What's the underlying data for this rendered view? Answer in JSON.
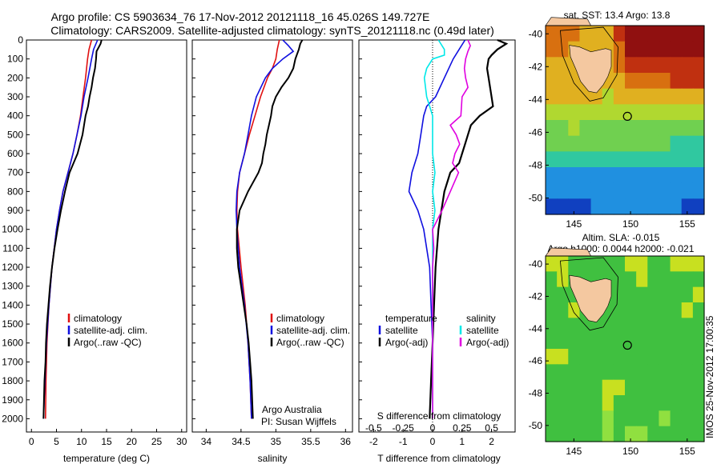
{
  "header": {
    "title_line1": "Argo profile: CS 5903634_76 17-Nov-2012 20121118_16 45.026S 149.727E",
    "title_line2": "Climatology: CARS2009. Satellite-adjusted climatology: synTS_20121118.nc (0.49d later)"
  },
  "colors": {
    "climatology": "#e01010",
    "satellite": "#1010e0",
    "argo": "#000000",
    "salinity_satellite": "#00e8e8",
    "salinity_argo": "#e000e0",
    "land": "#f4c8a0"
  },
  "chart_data": [
    {
      "type": "line",
      "title": "",
      "xlabel": "temperature (deg C)",
      "ylabel": "",
      "xlim": [
        -1,
        31
      ],
      "ylim": [
        2070,
        0
      ],
      "xticks": [
        "0",
        "5",
        "10",
        "15",
        "20",
        "25",
        "30"
      ],
      "xtick_values": [
        0,
        5,
        10,
        15,
        20,
        25,
        30
      ],
      "yticks": [
        "0",
        "100",
        "200",
        "300",
        "400",
        "500",
        "600",
        "700",
        "800",
        "900",
        "1000",
        "1100",
        "1200",
        "1300",
        "1400",
        "1500",
        "1600",
        "1700",
        "1800",
        "1900",
        "2000"
      ],
      "legend": [
        "climatology",
        "satellite-adj. clim.",
        "Argo(..raw -QC)"
      ],
      "legend_position": "lower-left",
      "series": [
        {
          "name": "climatology",
          "color": "red",
          "depth": [
            0,
            50,
            100,
            200,
            300,
            400,
            500,
            600,
            700,
            800,
            900,
            1000,
            1200,
            1400,
            1600,
            1800,
            2000
          ],
          "values": [
            12,
            11.5,
            11.2,
            10.8,
            10.3,
            9.8,
            9.1,
            8.3,
            7.3,
            6.3,
            5.6,
            5.0,
            4.1,
            3.5,
            3.1,
            2.9,
            2.8
          ]
        },
        {
          "name": "satellite-adj. clim.",
          "color": "blue",
          "depth": [
            0,
            50,
            100,
            200,
            300,
            400,
            500,
            600,
            700,
            800,
            900,
            1000,
            1200,
            1400,
            1600,
            1800,
            2000
          ],
          "values": [
            13.2,
            12.4,
            12.0,
            11.3,
            10.5,
            9.9,
            9.1,
            8.3,
            7.3,
            6.3,
            5.6,
            5.0,
            4.1,
            3.5,
            3.0,
            2.7,
            2.4
          ]
        },
        {
          "name": "Argo(..raw -QC)",
          "color": "black",
          "depth": [
            0,
            20,
            40,
            60,
            100,
            150,
            200,
            250,
            300,
            350,
            400,
            450,
            500,
            550,
            600,
            650,
            700,
            800,
            900,
            1000,
            1100,
            1200,
            1300,
            1400,
            1500,
            1600,
            1700,
            1800,
            1900,
            2000
          ],
          "values": [
            14.0,
            13.8,
            13.4,
            13.0,
            12.9,
            12.7,
            12.3,
            12.0,
            11.6,
            11.3,
            10.8,
            10.5,
            10.2,
            9.7,
            9.2,
            8.4,
            7.6,
            6.7,
            5.9,
            5.2,
            4.6,
            4.1,
            3.7,
            3.4,
            3.1,
            2.9,
            2.8,
            2.6,
            2.5,
            2.4
          ]
        }
      ]
    },
    {
      "type": "line",
      "title": "",
      "xlabel": "salinity",
      "ylabel": "",
      "xlim": [
        33.8,
        36.1
      ],
      "ylim": [
        2070,
        0
      ],
      "xticks": [
        "34",
        "34.5",
        "35",
        "35.5",
        "36"
      ],
      "xtick_values": [
        34,
        34.5,
        35,
        35.5,
        36
      ],
      "legend": [
        "climatology",
        "satellite-adj. clim.",
        "Argo(..raw -QC)"
      ],
      "legend_position": "lower-right",
      "annotation": [
        "Argo Australia",
        "PI: Susan Wijffels"
      ],
      "series": [
        {
          "name": "climatology",
          "color": "red",
          "depth": [
            0,
            50,
            100,
            150,
            200,
            300,
            400,
            500,
            600,
            700,
            800,
            900,
            1000,
            1200,
            1400,
            1600,
            1800,
            2000
          ],
          "values": [
            35.05,
            35.02,
            35.0,
            34.95,
            34.88,
            34.78,
            34.7,
            34.62,
            34.55,
            34.48,
            34.45,
            34.44,
            34.45,
            34.5,
            34.56,
            34.6,
            34.63,
            34.65
          ]
        },
        {
          "name": "satellite-adj. clim.",
          "color": "blue",
          "depth": [
            0,
            30,
            60,
            100,
            150,
            200,
            300,
            400,
            500,
            600,
            700,
            800,
            900,
            1000,
            1200,
            1400,
            1600,
            1800,
            2000
          ],
          "values": [
            35.1,
            35.18,
            35.25,
            35.1,
            34.95,
            34.85,
            34.72,
            34.65,
            34.6,
            34.55,
            34.48,
            34.44,
            34.43,
            34.44,
            34.48,
            34.55,
            34.6,
            34.63,
            34.65
          ]
        },
        {
          "name": "Argo(..raw -QC)",
          "color": "black",
          "depth": [
            0,
            20,
            50,
            80,
            100,
            150,
            200,
            250,
            300,
            350,
            400,
            450,
            500,
            550,
            600,
            650,
            700,
            800,
            900,
            1000,
            1100,
            1200,
            1300,
            1400,
            1500,
            1600,
            1700,
            1800,
            1900,
            2000
          ],
          "values": [
            35.38,
            35.35,
            35.33,
            35.3,
            35.28,
            35.25,
            35.18,
            35.08,
            35.0,
            34.95,
            34.93,
            34.9,
            34.87,
            34.85,
            34.82,
            34.8,
            34.75,
            34.6,
            34.48,
            34.44,
            34.44,
            34.46,
            34.5,
            34.54,
            34.58,
            34.61,
            34.63,
            34.65,
            34.66,
            34.67
          ]
        }
      ]
    },
    {
      "type": "line",
      "title": "",
      "xlabel": "T difference from climatology",
      "xlabel_top": "S difference from climatology",
      "xlim": [
        -2.5,
        2.8
      ],
      "ylim": [
        2070,
        0
      ],
      "xticks": [
        "-2",
        "-1",
        "0",
        "1",
        "2"
      ],
      "xtick_values": [
        -2,
        -1,
        0,
        1,
        2
      ],
      "s_xticks": [
        "-0.5",
        "-0.25",
        "0",
        "0.25",
        "0.5"
      ],
      "s_xtick_values": [
        -0.5,
        -0.25,
        0,
        0.25,
        0.5
      ],
      "legend_temperature_title": "temperature",
      "legend_salinity_title": "salinity",
      "legend": [
        "satellite",
        "Argo(-adj)",
        "satellite",
        "Argo(-adj)"
      ],
      "series": [
        {
          "name": "T satellite",
          "color": "blue",
          "depth": [
            0,
            50,
            100,
            200,
            300,
            350,
            400,
            500,
            600,
            700,
            800,
            900,
            1000,
            1200,
            1400,
            1600,
            1800,
            2000
          ],
          "values": [
            1.1,
            0.9,
            0.7,
            0.4,
            0.1,
            -0.2,
            -0.3,
            -0.4,
            -0.5,
            -0.7,
            -0.8,
            -0.5,
            -0.3,
            -0.1,
            -0.05,
            0,
            -0.05,
            -0.1
          ]
        },
        {
          "name": "T Argo(-adj)",
          "color": "black",
          "depth": [
            0,
            20,
            50,
            80,
            100,
            150,
            200,
            300,
            350,
            400,
            450,
            500,
            550,
            600,
            650,
            700,
            800,
            900,
            1000,
            1100,
            1200,
            1400,
            1600,
            1800,
            2000
          ],
          "values": [
            2.2,
            2.5,
            2.2,
            2.0,
            1.9,
            1.85,
            1.9,
            2.0,
            2.05,
            1.6,
            1.3,
            1.2,
            1.1,
            1.0,
            0.9,
            0.6,
            0.4,
            0.3,
            0.2,
            0.15,
            0.1,
            0.05,
            0.0,
            -0.05,
            -0.1
          ]
        },
        {
          "name": "S satellite",
          "color": "cyan",
          "depth": [
            0,
            50,
            80,
            100,
            150,
            200,
            300,
            400,
            500,
            600,
            700,
            800,
            900,
            1000,
            1200,
            1400,
            1600,
            1800,
            2000
          ],
          "values": [
            0.05,
            0.1,
            0.1,
            0.0,
            -0.05,
            -0.07,
            -0.05,
            0.0,
            0.0,
            0.0,
            0.02,
            0.0,
            0.02,
            0.0,
            0.0,
            0.0,
            0.0,
            0.0,
            0.0
          ]
        },
        {
          "name": "S Argo(-adj)",
          "color": "magenta",
          "depth": [
            0,
            30,
            60,
            100,
            150,
            200,
            250,
            300,
            400,
            450,
            500,
            550,
            600,
            650,
            700,
            800,
            900,
            1000,
            1100,
            1200,
            1400,
            1600,
            1800,
            2000
          ],
          "values": [
            0.3,
            0.32,
            0.3,
            0.28,
            0.27,
            0.28,
            0.3,
            0.25,
            0.24,
            0.15,
            0.2,
            0.23,
            0.19,
            0.17,
            0.22,
            0.15,
            0.08,
            0.0,
            0.01,
            0.0,
            0.0,
            0.0,
            0.0,
            0.0
          ]
        }
      ]
    },
    {
      "type": "heatmap",
      "title": "sat. SST: 13.4  Argo: 13.8",
      "xticks": [
        "145",
        "150",
        "155"
      ],
      "xtick_values": [
        145,
        150,
        155
      ],
      "yticks": [
        "-40",
        "-42",
        "-44",
        "-46",
        "-48",
        "-50"
      ],
      "ytick_values": [
        -40,
        -42,
        -44,
        -46,
        -48,
        -50
      ],
      "xlim": [
        142.5,
        156.5
      ],
      "ylim": [
        -51,
        -39.5
      ],
      "marker": {
        "lon": 149.727,
        "lat": -45.026
      },
      "rows_north_to_south": [
        [
          7,
          7,
          7,
          6,
          6,
          6,
          8,
          9,
          9,
          9,
          9,
          9,
          9,
          9
        ],
        [
          7,
          7,
          6,
          6,
          6,
          6,
          7,
          9,
          9,
          9,
          9,
          9,
          9,
          9
        ],
        [
          6,
          6,
          6,
          6,
          6,
          6,
          7,
          8,
          8,
          8,
          8,
          8,
          8,
          8
        ],
        [
          6,
          6,
          6,
          6,
          6,
          6,
          6,
          7,
          7,
          7,
          7,
          8,
          8,
          8
        ],
        [
          6,
          6,
          6,
          6,
          6,
          5,
          6,
          6,
          6,
          6,
          6,
          6,
          6,
          6
        ],
        [
          5,
          5,
          5,
          5,
          5,
          5,
          5,
          5,
          5,
          5,
          5,
          5,
          5,
          5
        ],
        [
          4,
          4,
          5,
          4,
          4,
          4,
          4,
          4,
          4,
          4,
          4,
          4,
          4,
          4
        ],
        [
          4,
          4,
          4,
          4,
          4,
          4,
          4,
          4,
          4,
          4,
          4,
          3,
          3,
          3
        ],
        [
          3,
          3,
          3,
          3,
          3,
          3,
          3,
          3,
          3,
          3,
          3,
          3,
          3,
          3
        ],
        [
          2,
          2,
          2,
          2,
          2,
          2,
          2,
          2,
          2,
          2,
          2,
          2,
          2,
          2
        ],
        [
          2,
          2,
          2,
          2,
          2,
          2,
          2,
          2,
          2,
          2,
          2,
          2,
          2,
          2
        ],
        [
          1,
          1,
          1,
          1,
          2,
          2,
          2,
          2,
          2,
          2,
          2,
          2,
          1,
          1
        ]
      ]
    },
    {
      "type": "heatmap",
      "title_line1": "Altim. SLA: -0.015",
      "title_line2": "Argo h1000: 0.0044  h2000: -0.021",
      "xticks": [
        "145",
        "150",
        "155"
      ],
      "xtick_values": [
        145,
        150,
        155
      ],
      "yticks": [
        "-40",
        "-42",
        "-44",
        "-46",
        "-48",
        "-50"
      ],
      "ytick_values": [
        -40,
        -42,
        -44,
        -46,
        -48,
        -50
      ],
      "xlim": [
        142.5,
        156.5
      ],
      "ylim": [
        -51,
        -39.5
      ],
      "marker": {
        "lon": 149.727,
        "lat": -45.026
      },
      "rows_north_to_south": [
        [
          5,
          5,
          4,
          4,
          4,
          4,
          4,
          5,
          5,
          4,
          4,
          5,
          5,
          5
        ],
        [
          4,
          5,
          4,
          4,
          4,
          4,
          4,
          4,
          5,
          4,
          4,
          4,
          4,
          4
        ],
        [
          4,
          4,
          4,
          4,
          4,
          4,
          4,
          4,
          4,
          4,
          4,
          4,
          4,
          5
        ],
        [
          4,
          4,
          5,
          4,
          4,
          4,
          4,
          4,
          4,
          4,
          4,
          4,
          5,
          4
        ],
        [
          4,
          4,
          4,
          4,
          4,
          4,
          4,
          4,
          4,
          4,
          4,
          4,
          4,
          4
        ],
        [
          4,
          4,
          4,
          4,
          4,
          4,
          4,
          4,
          4,
          4,
          4,
          4,
          4,
          4
        ],
        [
          5,
          5,
          4,
          4,
          4,
          4,
          4,
          4,
          4,
          4,
          4,
          4,
          4,
          4
        ],
        [
          4,
          4,
          4,
          4,
          4,
          4,
          4,
          4,
          4,
          4,
          4,
          4,
          4,
          4
        ],
        [
          4,
          4,
          4,
          4,
          4,
          5,
          5,
          4,
          4,
          4,
          4,
          4,
          4,
          4
        ],
        [
          4,
          4,
          4,
          4,
          4,
          5,
          4,
          4,
          4,
          4,
          4,
          4,
          4,
          4
        ],
        [
          4,
          4,
          4,
          4,
          4,
          3,
          4,
          4,
          4,
          4,
          3,
          4,
          4,
          4
        ],
        [
          4,
          4,
          4,
          4,
          4,
          3,
          4,
          3,
          3,
          4,
          4,
          4,
          4,
          4
        ]
      ]
    }
  ],
  "side_label": "IMOS 25-Nov-2012 17:00:35"
}
